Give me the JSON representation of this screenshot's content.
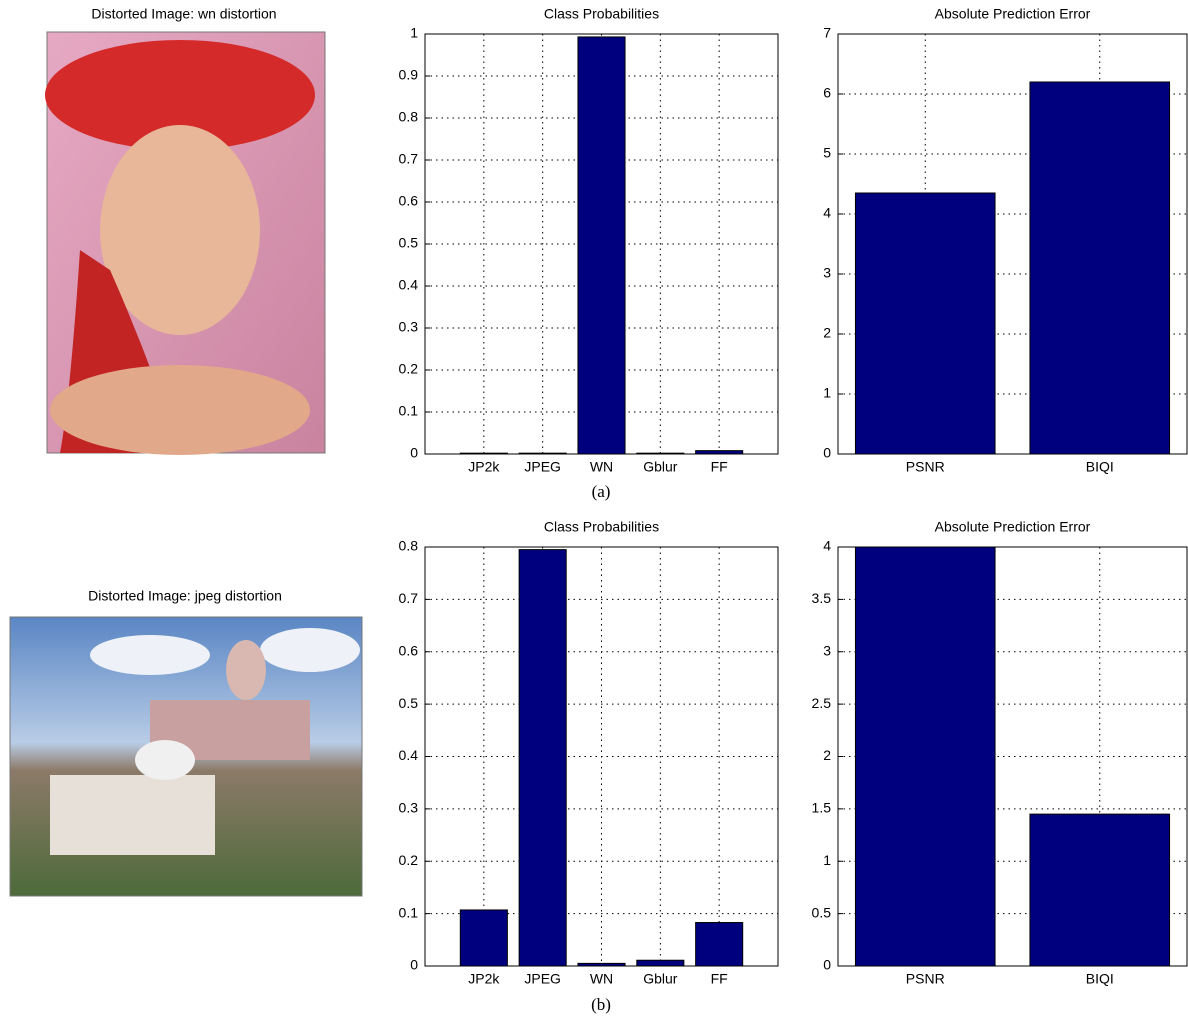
{
  "images": [
    {
      "title": "Distorted Image: wn distortion"
    },
    {
      "title": "Distorted Image: jpeg distortion"
    }
  ],
  "captions": [
    "(a)",
    "(b)"
  ],
  "chart_data": [
    {
      "type": "bar",
      "title": "Class Probabilities",
      "categories": [
        "JP2k",
        "JPEG",
        "WN",
        "Gblur",
        "FF"
      ],
      "values": [
        0.002,
        0.002,
        0.993,
        0.002,
        0.008
      ],
      "color": "#00007f",
      "ylim": [
        0,
        1
      ],
      "yticks": [
        0,
        0.1,
        0.2,
        0.3,
        0.4,
        0.5,
        0.6,
        0.7,
        0.8,
        0.9,
        1
      ],
      "grid": true
    },
    {
      "type": "bar",
      "title": "Absolute Prediction Error",
      "categories": [
        "PSNR",
        "BIQI"
      ],
      "values": [
        4.35,
        6.2
      ],
      "color": "#00007f",
      "ylim": [
        0,
        7
      ],
      "yticks": [
        0,
        1,
        2,
        3,
        4,
        5,
        6,
        7
      ],
      "grid": true
    },
    {
      "type": "bar",
      "title": "Class Probabilities",
      "categories": [
        "JP2k",
        "JPEG",
        "WN",
        "Gblur",
        "FF"
      ],
      "values": [
        0.107,
        0.795,
        0.005,
        0.011,
        0.083
      ],
      "color": "#00007f",
      "ylim": [
        0,
        0.8
      ],
      "yticks": [
        0,
        0.1,
        0.2,
        0.3,
        0.4,
        0.5,
        0.6,
        0.7,
        0.8
      ],
      "grid": true
    },
    {
      "type": "bar",
      "title": "Absolute Prediction Error",
      "categories": [
        "PSNR",
        "BIQI"
      ],
      "values": [
        4.0,
        1.45
      ],
      "color": "#00007f",
      "ylim": [
        0,
        4
      ],
      "yticks": [
        0,
        0.5,
        1,
        1.5,
        2,
        2.5,
        3,
        3.5,
        4
      ],
      "grid": true
    }
  ]
}
